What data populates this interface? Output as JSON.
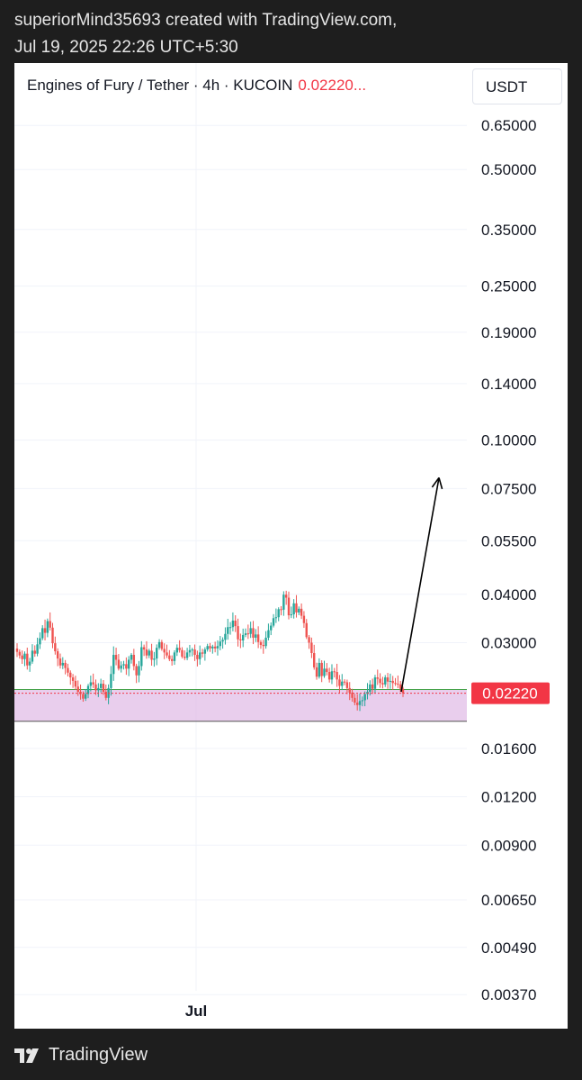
{
  "header": {
    "line1": "superiorMind35693 created with TradingView.com,",
    "line2": "Jul 19, 2025 22:26 UTC+5:30"
  },
  "legend": {
    "symbol": "Engines of Fury / Tether · 4h · KUCOIN",
    "price": "0.02220..."
  },
  "currency_button": "USDT",
  "footer": {
    "brand": "TradingView",
    "icon": "tradingview-logo-icon"
  },
  "colors": {
    "up": "#26a69a",
    "down": "#ef5350",
    "zone_fill": "#e1bee7",
    "zone_line": "#43a047",
    "price_tag": "#f23645"
  },
  "chart_data": {
    "type": "candlestick",
    "scale": "log",
    "ylim": [
      0.0034,
      0.74
    ],
    "y_ticks": [
      "0.65000",
      "0.50000",
      "0.35000",
      "0.25000",
      "0.19000",
      "0.14000",
      "0.10000",
      "0.07500",
      "0.05500",
      "0.04000",
      "0.03000",
      "0.01600",
      "0.01200",
      "0.00900",
      "0.00650",
      "0.00490",
      "0.00370"
    ],
    "x_label": "Jul",
    "last_price": 0.0222,
    "last_price_label": "0.02220",
    "support_zone": {
      "top": 0.0227,
      "bottom": 0.0188
    },
    "projection": {
      "from": 0.0224,
      "to": 0.08
    },
    "closes": [
      0.0284,
      0.0278,
      0.0272,
      0.0281,
      0.0262,
      0.0268,
      0.0286,
      0.0281,
      0.0297,
      0.0308,
      0.0327,
      0.0318,
      0.0341,
      0.0328,
      0.0299,
      0.0285,
      0.0273,
      0.0262,
      0.0266,
      0.0258,
      0.0251,
      0.0244,
      0.0239,
      0.0231,
      0.0224,
      0.0221,
      0.0215,
      0.0221,
      0.0232,
      0.0237,
      0.0234,
      0.0226,
      0.0229,
      0.0235,
      0.0224,
      0.0216,
      0.0229,
      0.0249,
      0.0279,
      0.0271,
      0.0257,
      0.0262,
      0.0264,
      0.0257,
      0.0271,
      0.0279,
      0.0261,
      0.0247,
      0.0261,
      0.0292,
      0.0288,
      0.0278,
      0.0286,
      0.0271,
      0.0273,
      0.0291,
      0.0301,
      0.0289,
      0.0283,
      0.0278,
      0.0272,
      0.0269,
      0.0283,
      0.0291,
      0.0287,
      0.0276,
      0.0274,
      0.0283,
      0.0287,
      0.0288,
      0.0279,
      0.0272,
      0.0283,
      0.0281,
      0.0288,
      0.0294,
      0.029,
      0.0293,
      0.029,
      0.0294,
      0.0302,
      0.0305,
      0.0316,
      0.0329,
      0.0329,
      0.0342,
      0.0331,
      0.0306,
      0.0304,
      0.0314,
      0.0317,
      0.0316,
      0.0327,
      0.0309,
      0.0315,
      0.0301,
      0.0296,
      0.0294,
      0.0309,
      0.0323,
      0.0332,
      0.0347,
      0.0349,
      0.0366,
      0.0365,
      0.0399,
      0.0392,
      0.0353,
      0.0355,
      0.0379,
      0.0359,
      0.0367,
      0.0352,
      0.0337,
      0.031,
      0.03,
      0.0282,
      0.0259,
      0.0245,
      0.0266,
      0.0246,
      0.0257,
      0.0252,
      0.0241,
      0.0253,
      0.0252,
      0.0241,
      0.0232,
      0.0238,
      0.0237,
      0.0229,
      0.0223,
      0.0216,
      0.021,
      0.0207,
      0.0212,
      0.0213,
      0.0221,
      0.0224,
      0.0234,
      0.0228,
      0.0244,
      0.0242,
      0.0236,
      0.0234,
      0.0244,
      0.0238,
      0.0239,
      0.0236,
      0.0235,
      0.0234,
      0.0228,
      0.0222
    ]
  }
}
